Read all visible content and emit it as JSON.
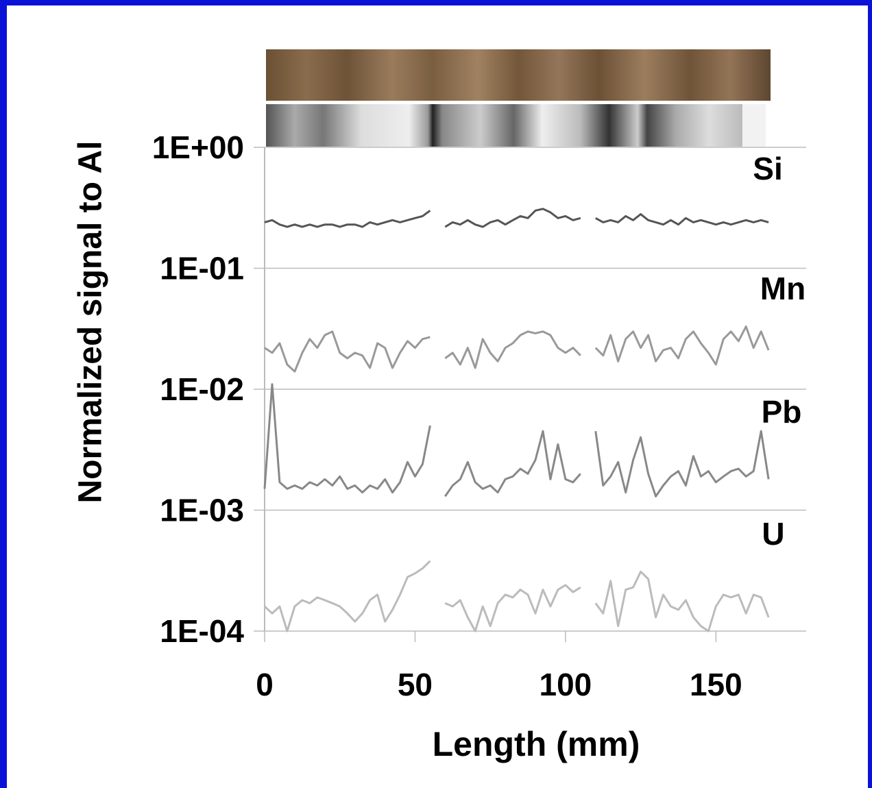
{
  "chart_data": {
    "type": "line",
    "x_label": "Length (mm)",
    "y_label": "Normalized signal  to Al",
    "log_y": true,
    "grid": true,
    "xlim": [
      0,
      180
    ],
    "xticks": [
      0,
      50,
      100,
      150
    ],
    "ylim": [
      0.0001,
      1
    ],
    "yticks": [
      {
        "value": 1,
        "label": "1E+00"
      },
      {
        "value": 0.1,
        "label": "1E-01"
      },
      {
        "value": 0.01,
        "label": "1E-02"
      },
      {
        "value": 0.001,
        "label": "1E-03"
      },
      {
        "value": 0.0001,
        "label": "1E-04"
      }
    ],
    "x": [
      0,
      2.5,
      5,
      7.5,
      10,
      12.5,
      15,
      17.5,
      20,
      22.5,
      25,
      27.5,
      30,
      32.5,
      35,
      37.5,
      40,
      42.5,
      45,
      47.5,
      50,
      52.5,
      55,
      57.5,
      60,
      62.5,
      65,
      67.5,
      70,
      72.5,
      75,
      77.5,
      80,
      82.5,
      85,
      87.5,
      90,
      92.5,
      95,
      97.5,
      100,
      102.5,
      105,
      107.5,
      110,
      112.5,
      115,
      117.5,
      120,
      122.5,
      125,
      127.5,
      130,
      132.5,
      135,
      137.5,
      140,
      142.5,
      145,
      147.5,
      150,
      152.5,
      155,
      157.5,
      160,
      162.5,
      165,
      167.5
    ],
    "series": [
      {
        "name": "Si",
        "color": "#555555",
        "values": [
          0.24,
          0.25,
          0.23,
          0.22,
          0.23,
          0.22,
          0.23,
          0.22,
          0.23,
          0.23,
          0.22,
          0.23,
          0.23,
          0.22,
          0.24,
          0.23,
          0.24,
          0.25,
          0.24,
          0.25,
          0.26,
          0.27,
          0.3,
          null,
          0.22,
          0.24,
          0.23,
          0.25,
          0.23,
          0.22,
          0.24,
          0.25,
          0.23,
          0.25,
          0.27,
          0.26,
          0.3,
          0.31,
          0.29,
          0.26,
          0.27,
          0.25,
          0.26,
          null,
          0.26,
          0.24,
          0.25,
          0.24,
          0.27,
          0.25,
          0.28,
          0.25,
          0.24,
          0.23,
          0.25,
          0.23,
          0.26,
          0.24,
          0.25,
          0.24,
          0.23,
          0.24,
          0.23,
          0.24,
          0.25,
          0.24,
          0.25,
          0.24
        ]
      },
      {
        "name": "Mn",
        "color": "#999999",
        "values": [
          0.022,
          0.02,
          0.024,
          0.016,
          0.014,
          0.02,
          0.026,
          0.022,
          0.028,
          0.03,
          0.02,
          0.018,
          0.02,
          0.019,
          0.015,
          0.024,
          0.022,
          0.015,
          0.02,
          0.025,
          0.022,
          0.026,
          0.027,
          null,
          0.018,
          0.02,
          0.016,
          0.022,
          0.015,
          0.026,
          0.02,
          0.017,
          0.022,
          0.024,
          0.028,
          0.03,
          0.029,
          0.03,
          0.028,
          0.022,
          0.02,
          0.022,
          0.019,
          null,
          0.022,
          0.019,
          0.028,
          0.017,
          0.026,
          0.03,
          0.022,
          0.028,
          0.017,
          0.021,
          0.022,
          0.018,
          0.026,
          0.03,
          0.024,
          0.02,
          0.016,
          0.026,
          0.03,
          0.025,
          0.033,
          0.022,
          0.03,
          0.021
        ]
      },
      {
        "name": "Pb",
        "color": "#888888",
        "values": [
          0.0015,
          0.011,
          0.0017,
          0.0015,
          0.0016,
          0.0015,
          0.0017,
          0.0016,
          0.0018,
          0.0016,
          0.0019,
          0.0015,
          0.0016,
          0.0014,
          0.0016,
          0.0015,
          0.0018,
          0.0014,
          0.0017,
          0.0025,
          0.0019,
          0.0024,
          0.005,
          null,
          0.0013,
          0.0016,
          0.0018,
          0.0025,
          0.0017,
          0.0015,
          0.0016,
          0.0014,
          0.0018,
          0.0019,
          0.0022,
          0.002,
          0.0026,
          0.0045,
          0.0018,
          0.0035,
          0.0018,
          0.0017,
          0.002,
          null,
          0.0045,
          0.0016,
          0.0019,
          0.0025,
          0.0014,
          0.0026,
          0.004,
          0.002,
          0.0013,
          0.0016,
          0.0019,
          0.0021,
          0.0016,
          0.0028,
          0.0019,
          0.0021,
          0.0017,
          0.0019,
          0.0021,
          0.0022,
          0.0019,
          0.0021,
          0.0045,
          0.0018
        ]
      },
      {
        "name": "U",
        "color": "#bbbbbb",
        "values": [
          0.00016,
          0.00014,
          0.00016,
          0.0001,
          0.00016,
          0.00018,
          0.00017,
          0.00019,
          0.00018,
          0.00017,
          0.00016,
          0.00014,
          0.00012,
          0.00014,
          0.00018,
          0.0002,
          0.00012,
          0.00015,
          0.0002,
          0.00028,
          0.0003,
          0.00033,
          0.00038,
          null,
          0.00017,
          0.00016,
          0.00018,
          0.00013,
          0.0001,
          0.00016,
          0.00011,
          0.00017,
          0.0002,
          0.00019,
          0.00022,
          0.0002,
          0.00014,
          0.00022,
          0.00016,
          0.00022,
          0.00024,
          0.00021,
          0.00023,
          null,
          0.00017,
          0.00014,
          0.00026,
          0.00011,
          0.00022,
          0.00023,
          0.00031,
          0.00027,
          0.00013,
          0.0002,
          0.00016,
          0.00015,
          0.00018,
          0.00013,
          0.00011,
          0.0001,
          0.00016,
          0.0002,
          0.00019,
          0.0002,
          0.00014,
          0.0002,
          0.00019,
          0.00013
        ]
      }
    ]
  }
}
